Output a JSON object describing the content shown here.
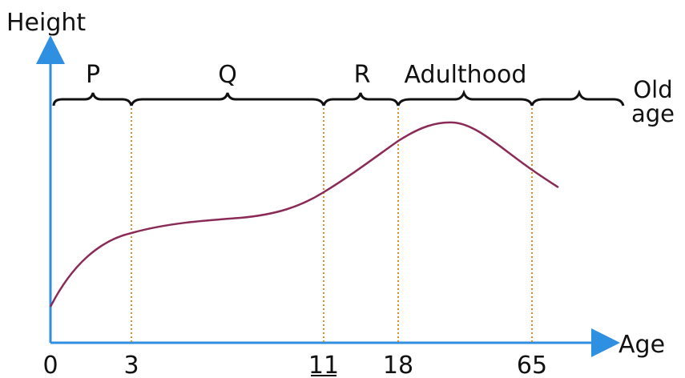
{
  "y_axis_label": "Height",
  "x_axis_label": "Age",
  "colors": {
    "axis": "#2f8fe0",
    "curve": "#8a2a57",
    "divider": "#e08a2a",
    "brace": "#111111"
  },
  "ticks": [
    "0",
    "3",
    "11",
    "18",
    "65"
  ],
  "stages": [
    {
      "label": "P"
    },
    {
      "label": "Q"
    },
    {
      "label": "R"
    },
    {
      "label": "Adulthood"
    },
    {
      "label_line1": "Old",
      "label_line2": "age"
    }
  ]
}
